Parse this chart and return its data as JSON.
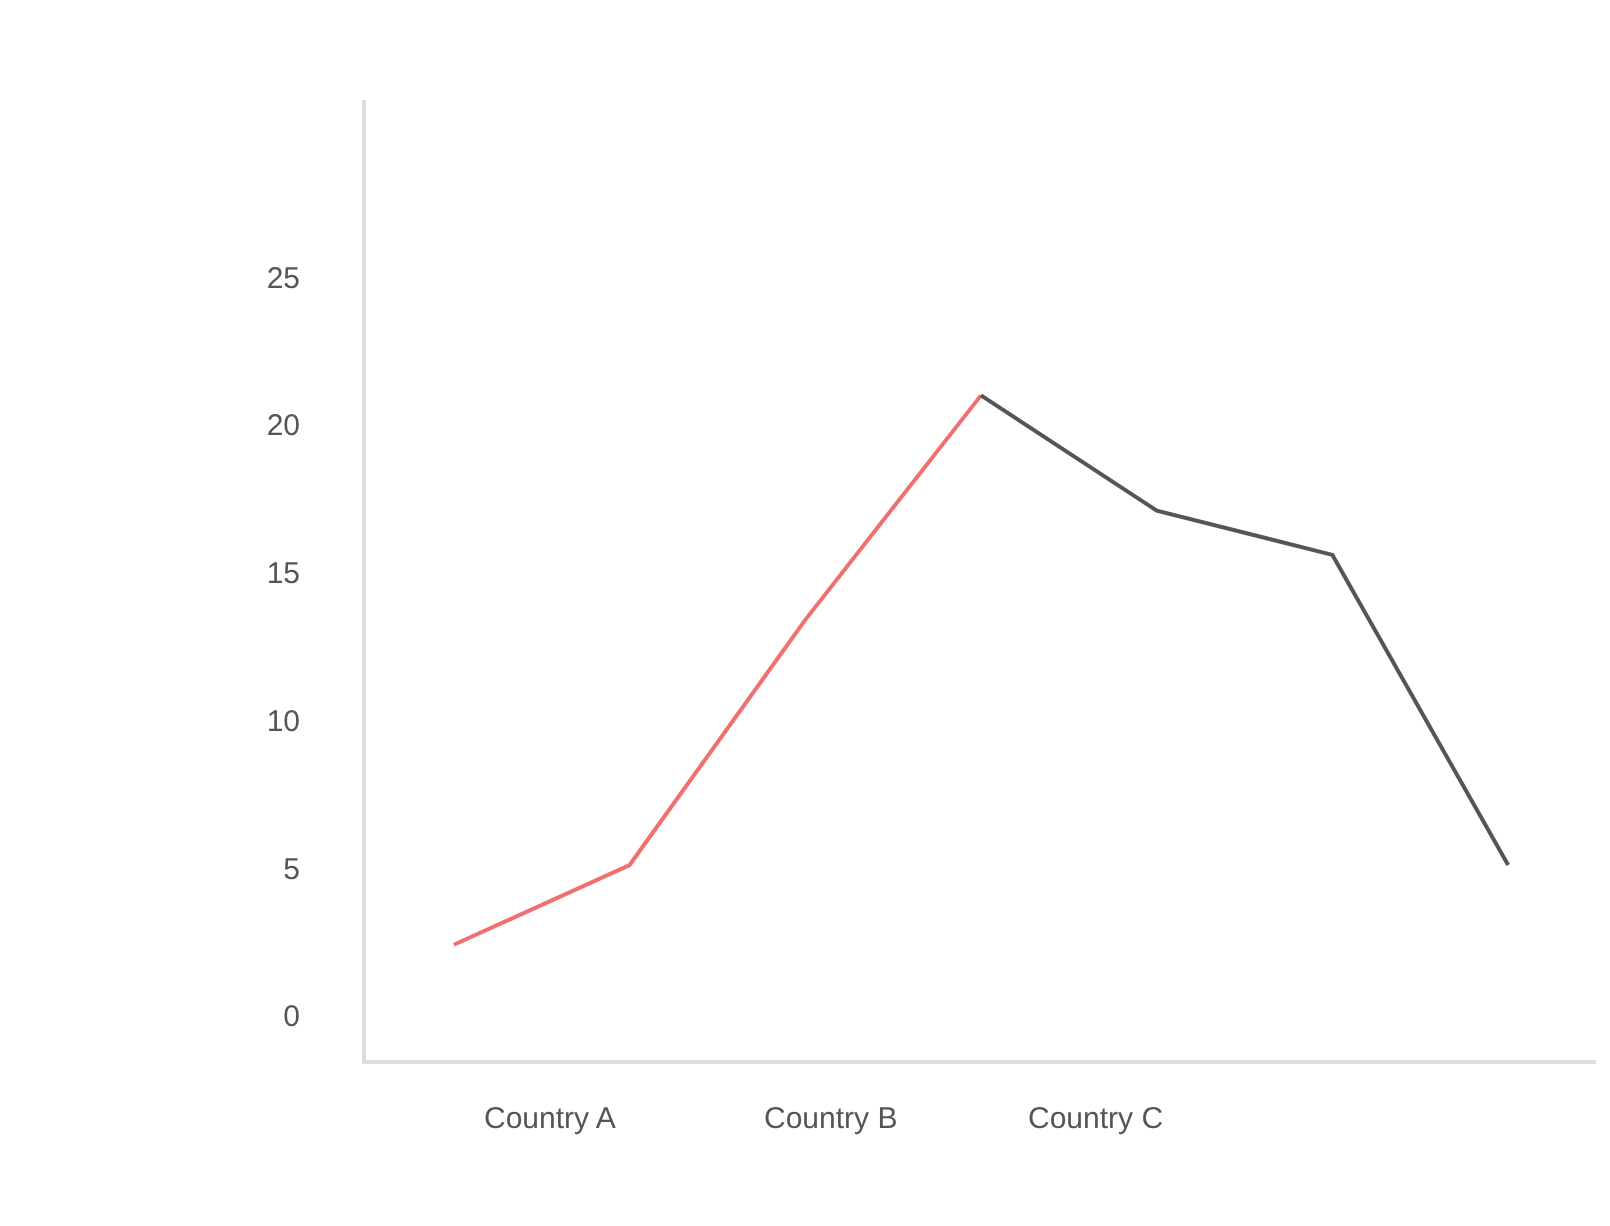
{
  "chart_data": {
    "type": "line",
    "categories": [
      null,
      null,
      null,
      null,
      null,
      null,
      null
    ],
    "ylim": [
      -1.5,
      31
    ],
    "yticks": [
      0,
      5,
      10,
      15,
      20,
      25
    ],
    "grid": false,
    "marker": "none",
    "line_style": "solid",
    "annotations": [
      "Country A",
      "Country B",
      "Country C"
    ],
    "series": [
      {
        "color": "#f07070",
        "values": [
          2.4,
          5.1,
          13.4,
          21.0,
          null,
          null,
          null
        ]
      },
      {
        "color": "#555555",
        "values": [
          null,
          null,
          null,
          21.0,
          17.1,
          15.6,
          5.1
        ]
      }
    ]
  }
}
